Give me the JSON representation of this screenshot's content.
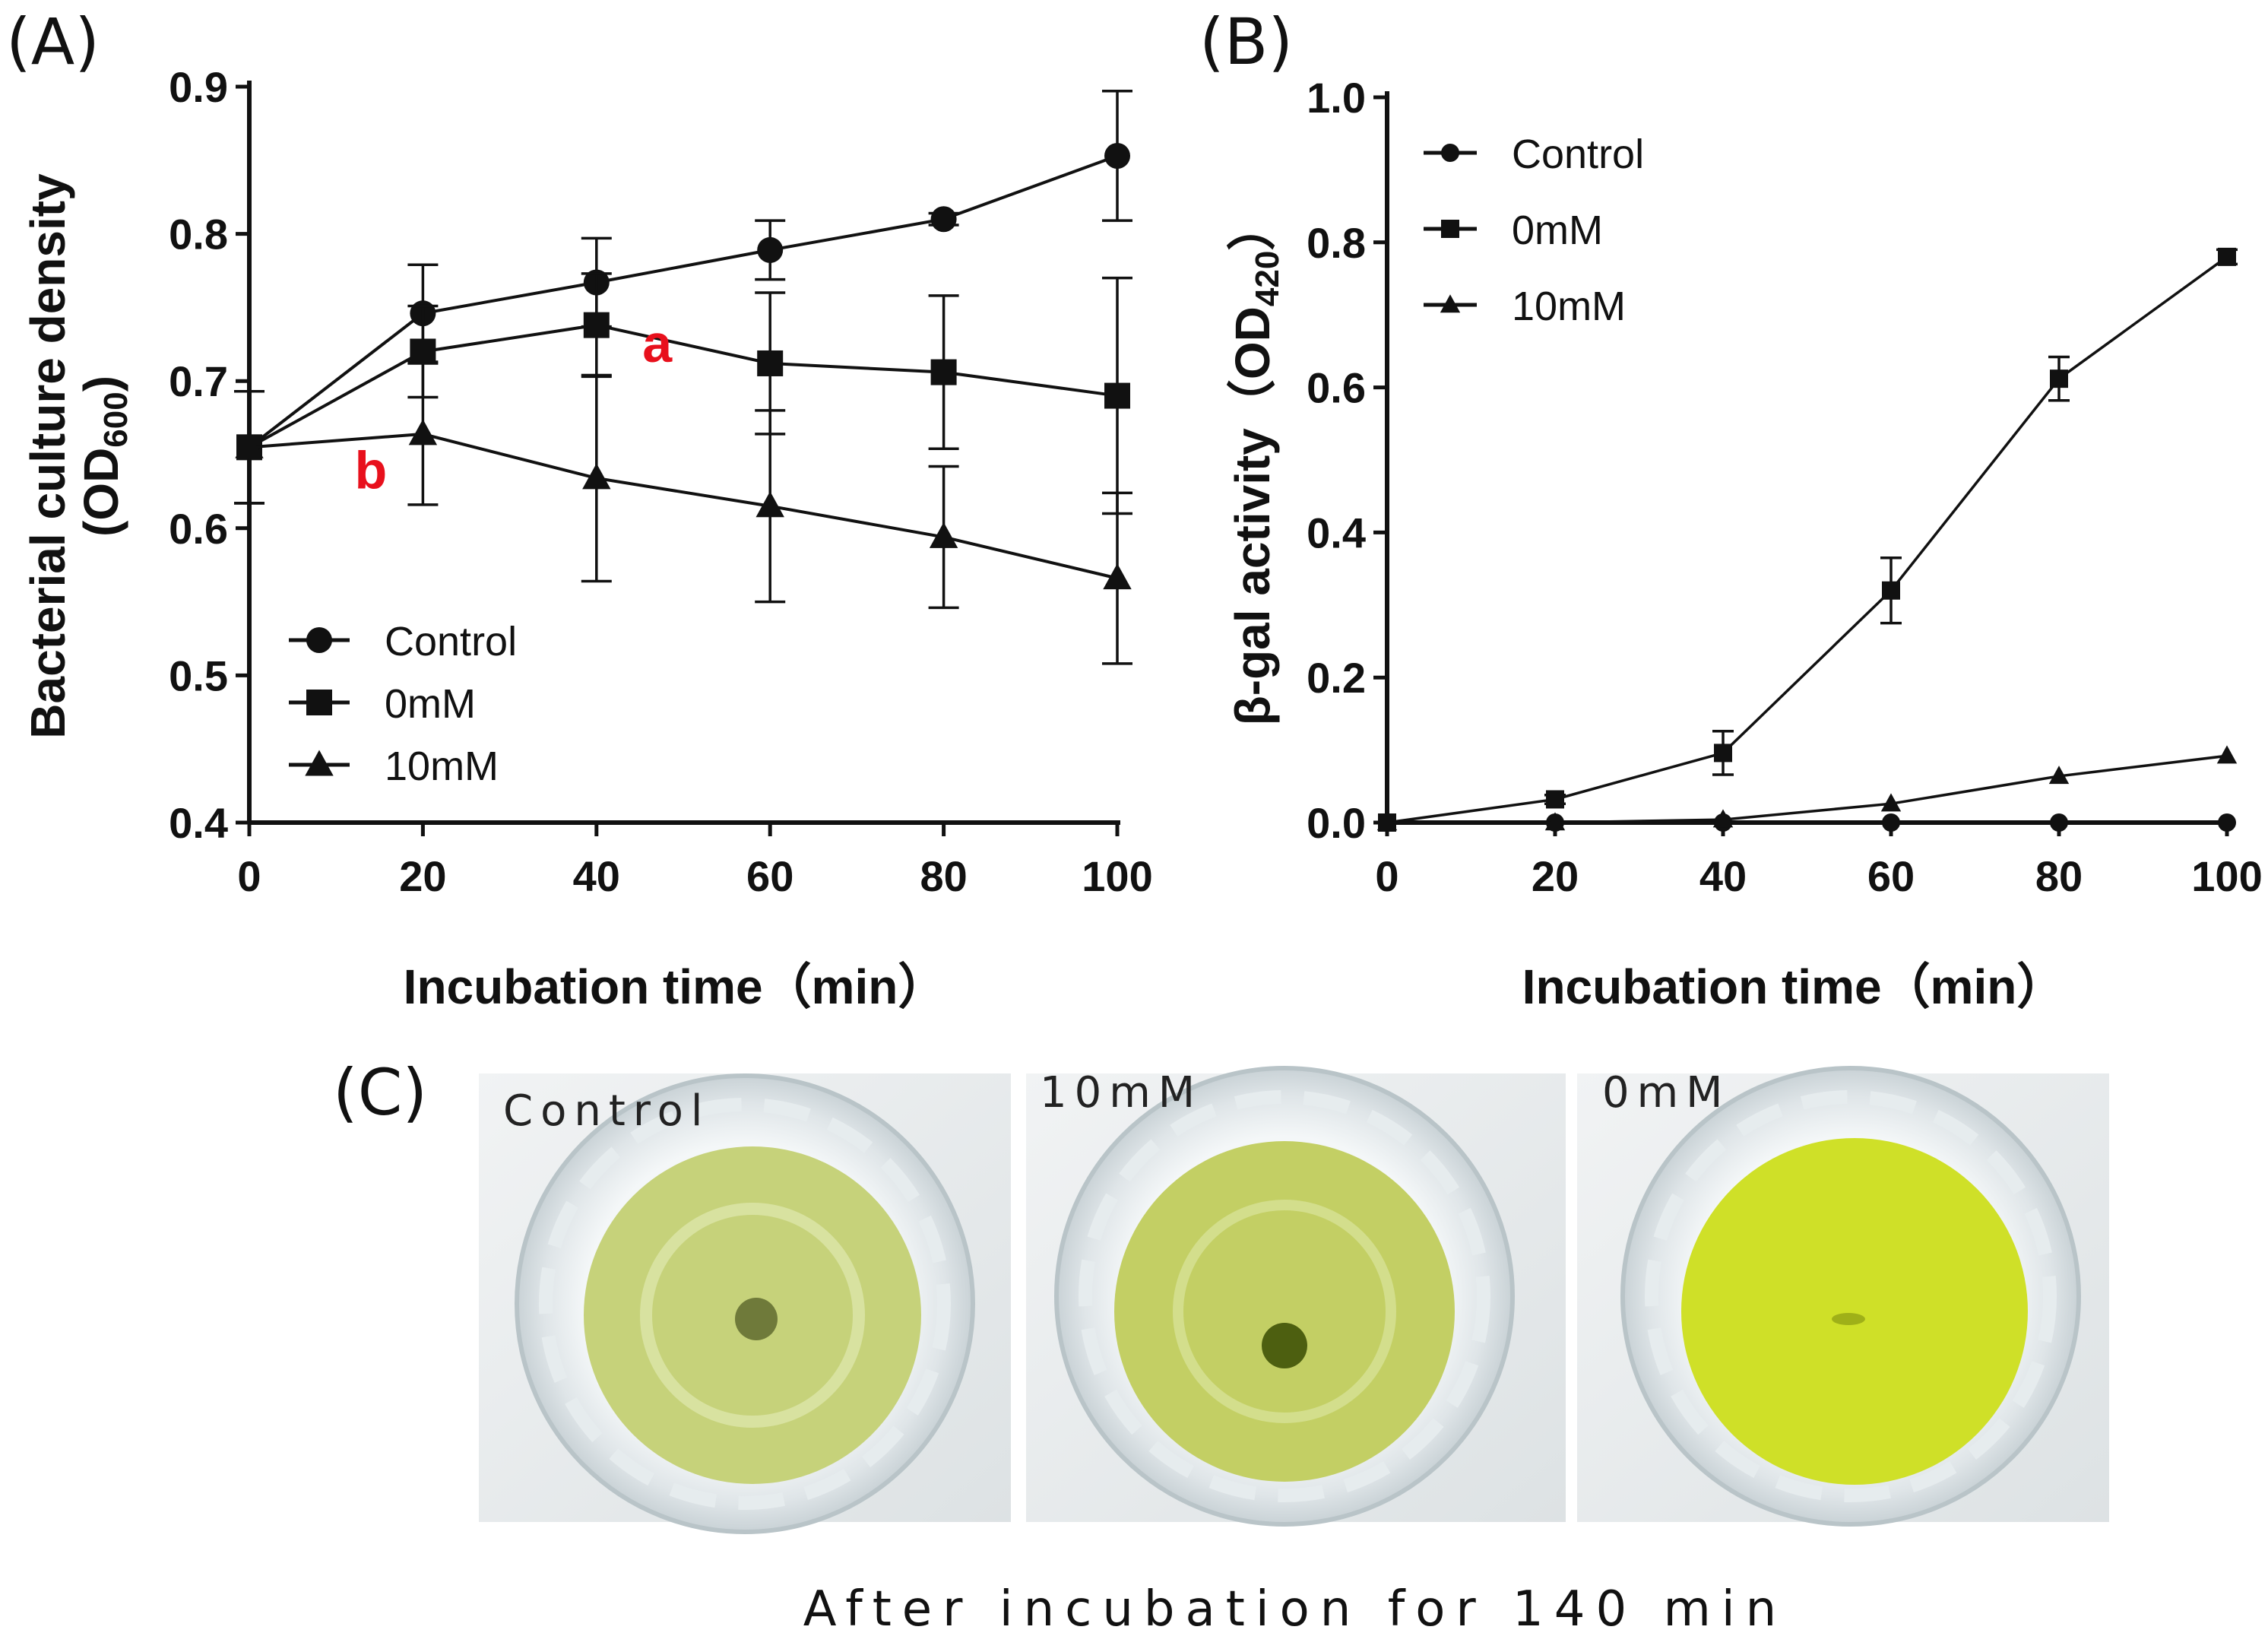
{
  "panels": {
    "a": {
      "label": "(A)"
    },
    "b": {
      "label": "(B)"
    },
    "c": {
      "label": "(C)"
    }
  },
  "chart_data": [
    {
      "id": "A",
      "type": "line",
      "title": "",
      "xlabel": "Incubation time（min）",
      "ylabel_main": "Bacterial culture density",
      "ylabel_sub_prefix": "(OD",
      "ylabel_sub_subscript": "600",
      "ylabel_sub_suffix": ")",
      "x": [
        0,
        20,
        40,
        60,
        80,
        100
      ],
      "xlim": [
        0,
        100
      ],
      "ylim": [
        0.4,
        0.9
      ],
      "xticks": [
        "0",
        "20",
        "40",
        "60",
        "80",
        "100"
      ],
      "yticks": [
        "0.4",
        "0.5",
        "0.6",
        "0.7",
        "0.8",
        "0.9"
      ],
      "series": [
        {
          "name": "Control",
          "marker": "circle",
          "values": [
            0.655,
            0.746,
            0.767,
            0.789,
            0.81,
            0.853
          ],
          "errors": [
            0.038,
            0.033,
            0.03,
            0.02,
            0.004,
            0.044
          ]
        },
        {
          "name": "0mM",
          "marker": "square",
          "values": [
            0.655,
            0.72,
            0.738,
            0.712,
            0.706,
            0.69
          ],
          "errors": [
            0.038,
            0.031,
            0.035,
            0.048,
            0.052,
            0.08
          ]
        },
        {
          "name": "10mM",
          "marker": "triangle",
          "values": [
            0.655,
            0.664,
            0.634,
            0.615,
            0.594,
            0.566
          ],
          "errors": [
            0.038,
            0.048,
            0.07,
            0.065,
            0.048,
            0.058
          ]
        }
      ],
      "legend": [
        "Control",
        "0mM",
        "10mM"
      ],
      "legend_position": "bottom-left",
      "annotations": [
        {
          "text": "a",
          "x": 47,
          "y": 0.713,
          "color": "#e8101c"
        },
        {
          "text": "b",
          "x": 14,
          "y": 0.627,
          "color": "#e8101c"
        }
      ]
    },
    {
      "id": "B",
      "type": "line",
      "title": "",
      "xlabel": "Incubation time（min）",
      "ylabel_main": "β-gal activity（OD",
      "ylabel_subscript": "420",
      "ylabel_suffix": "）",
      "x": [
        0,
        20,
        40,
        60,
        80,
        100
      ],
      "xlim": [
        0,
        100
      ],
      "ylim": [
        0.0,
        1.0
      ],
      "xticks": [
        "0",
        "20",
        "40",
        "60",
        "80",
        "100"
      ],
      "yticks": [
        "0.0",
        "0.2",
        "0.4",
        "0.6",
        "0.8",
        "1.0"
      ],
      "series": [
        {
          "name": "Control",
          "marker": "circle",
          "values": [
            0.0,
            0.0,
            0.0,
            0.0,
            0.0,
            0.0
          ],
          "errors": [
            0,
            0,
            0,
            0,
            0,
            0
          ]
        },
        {
          "name": "0mM",
          "marker": "square",
          "values": [
            0.0,
            0.032,
            0.096,
            0.32,
            0.612,
            0.78
          ],
          "errors": [
            0,
            0.006,
            0.03,
            0.045,
            0.03,
            0.01
          ]
        },
        {
          "name": "10mM",
          "marker": "triangle",
          "values": [
            0.0,
            0.0,
            0.004,
            0.026,
            0.064,
            0.092
          ],
          "errors": [
            0,
            0,
            0,
            0,
            0,
            0
          ]
        }
      ],
      "legend": [
        "Control",
        "0mM",
        "10mM"
      ],
      "legend_position": "top-left"
    }
  ],
  "photos": {
    "items": [
      {
        "label": "Control",
        "fill": "#c6d27a"
      },
      {
        "label": "10mM",
        "fill": "#c3cf64"
      },
      {
        "label": "0mM",
        "fill": "#cfe028"
      }
    ],
    "caption": "After incubation for 140 min"
  }
}
